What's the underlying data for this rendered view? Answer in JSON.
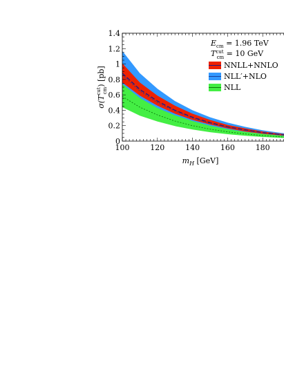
{
  "chart_data": {
    "type": "area",
    "xlabel": "m_H [GeV]",
    "ylabel": "σ(T_cm^cut) [pb]",
    "xlim": [
      100,
      200
    ],
    "ylim": [
      0,
      1.4
    ],
    "x_ticks": [
      "100",
      "120",
      "140",
      "160",
      "180"
    ],
    "y_ticks": [
      "0",
      "0.2",
      "0.4",
      "0.6",
      "0.8",
      "1",
      "1.2",
      "1.4"
    ],
    "annotations": [
      "E_cm = 1.96 TeV",
      "T_cm^cut = 10 GeV"
    ],
    "legend_position": "top-right",
    "x": [
      100,
      110,
      120,
      130,
      140,
      150,
      160,
      170,
      180,
      190,
      200
    ],
    "series": [
      {
        "name": "NNLL+NNLO",
        "color": "#ee2200",
        "central": [
          0.88,
          0.67,
          0.52,
          0.4,
          0.31,
          0.24,
          0.185,
          0.145,
          0.11,
          0.085,
          0.065
        ],
        "upper": [
          1.01,
          0.76,
          0.59,
          0.46,
          0.355,
          0.275,
          0.21,
          0.165,
          0.125,
          0.097,
          0.075
        ],
        "lower": [
          0.76,
          0.59,
          0.46,
          0.355,
          0.275,
          0.215,
          0.165,
          0.125,
          0.095,
          0.074,
          0.057
        ]
      },
      {
        "name": "NLL′+NLO",
        "color": "#3399ff",
        "central": [
          0.86,
          0.65,
          0.5,
          0.39,
          0.3,
          0.23,
          0.18,
          0.14,
          0.107,
          0.082,
          0.064
        ],
        "upper": [
          1.17,
          0.88,
          0.68,
          0.52,
          0.4,
          0.31,
          0.24,
          0.185,
          0.14,
          0.108,
          0.083
        ],
        "lower": [
          0.62,
          0.47,
          0.36,
          0.28,
          0.215,
          0.165,
          0.127,
          0.098,
          0.075,
          0.058,
          0.045
        ]
      },
      {
        "name": "NLL",
        "color": "#44ee44",
        "central": [
          0.58,
          0.44,
          0.34,
          0.26,
          0.2,
          0.155,
          0.12,
          0.093,
          0.072,
          0.056,
          0.043
        ],
        "upper": [
          0.74,
          0.56,
          0.43,
          0.335,
          0.26,
          0.2,
          0.155,
          0.12,
          0.093,
          0.072,
          0.056
        ],
        "lower": [
          0.44,
          0.33,
          0.255,
          0.195,
          0.15,
          0.116,
          0.09,
          0.07,
          0.054,
          0.042,
          0.033
        ]
      }
    ]
  }
}
